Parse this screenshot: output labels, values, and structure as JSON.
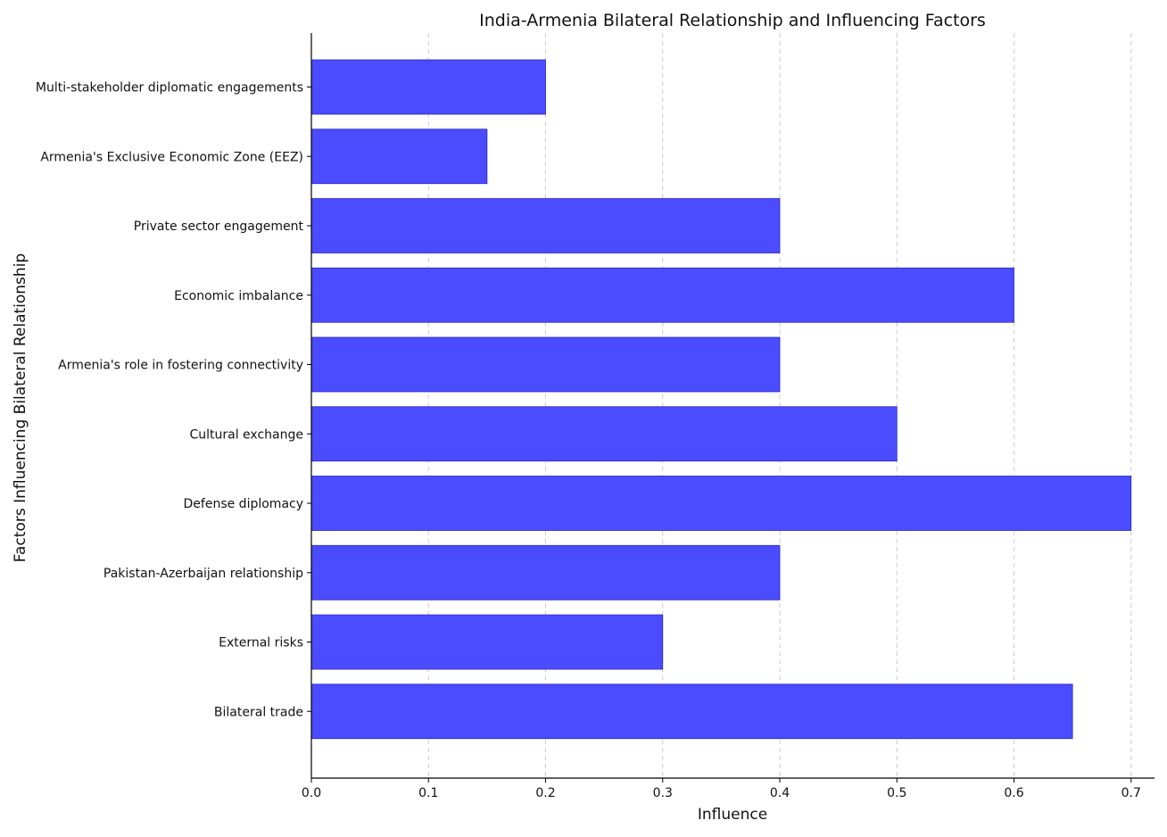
{
  "chart_data": {
    "type": "bar",
    "orientation": "horizontal",
    "title": "India-Armenia Bilateral Relationship and Influencing Factors",
    "xlabel": "Influence",
    "ylabel": "Factors Influencing Bilateral Relationship",
    "categories": [
      "Bilateral trade",
      "External risks",
      "Pakistan-Azerbaijan relationship",
      "Defense diplomacy",
      "Cultural exchange",
      "Armenia's role in fostering connectivity",
      "Economic imbalance",
      "Private sector engagement",
      "Armenia's Exclusive Economic Zone (EEZ)",
      "Multi-stakeholder diplomatic engagements"
    ],
    "values": [
      0.65,
      0.3,
      0.4,
      0.7,
      0.5,
      0.4,
      0.6,
      0.4,
      0.15,
      0.2
    ],
    "xlim": [
      0,
      0.72
    ],
    "xticks": [
      0.0,
      0.1,
      0.2,
      0.3,
      0.4,
      0.5,
      0.6,
      0.7
    ],
    "xtick_labels": [
      "0.0",
      "0.1",
      "0.2",
      "0.3",
      "0.4",
      "0.5",
      "0.6",
      "0.7"
    ],
    "grid": "vertical-dashed",
    "bar_color": "#4b4bff",
    "bar_edge_color": "#2b2bbf",
    "grid_color": "#cccccc",
    "axis_color": "#000000"
  }
}
